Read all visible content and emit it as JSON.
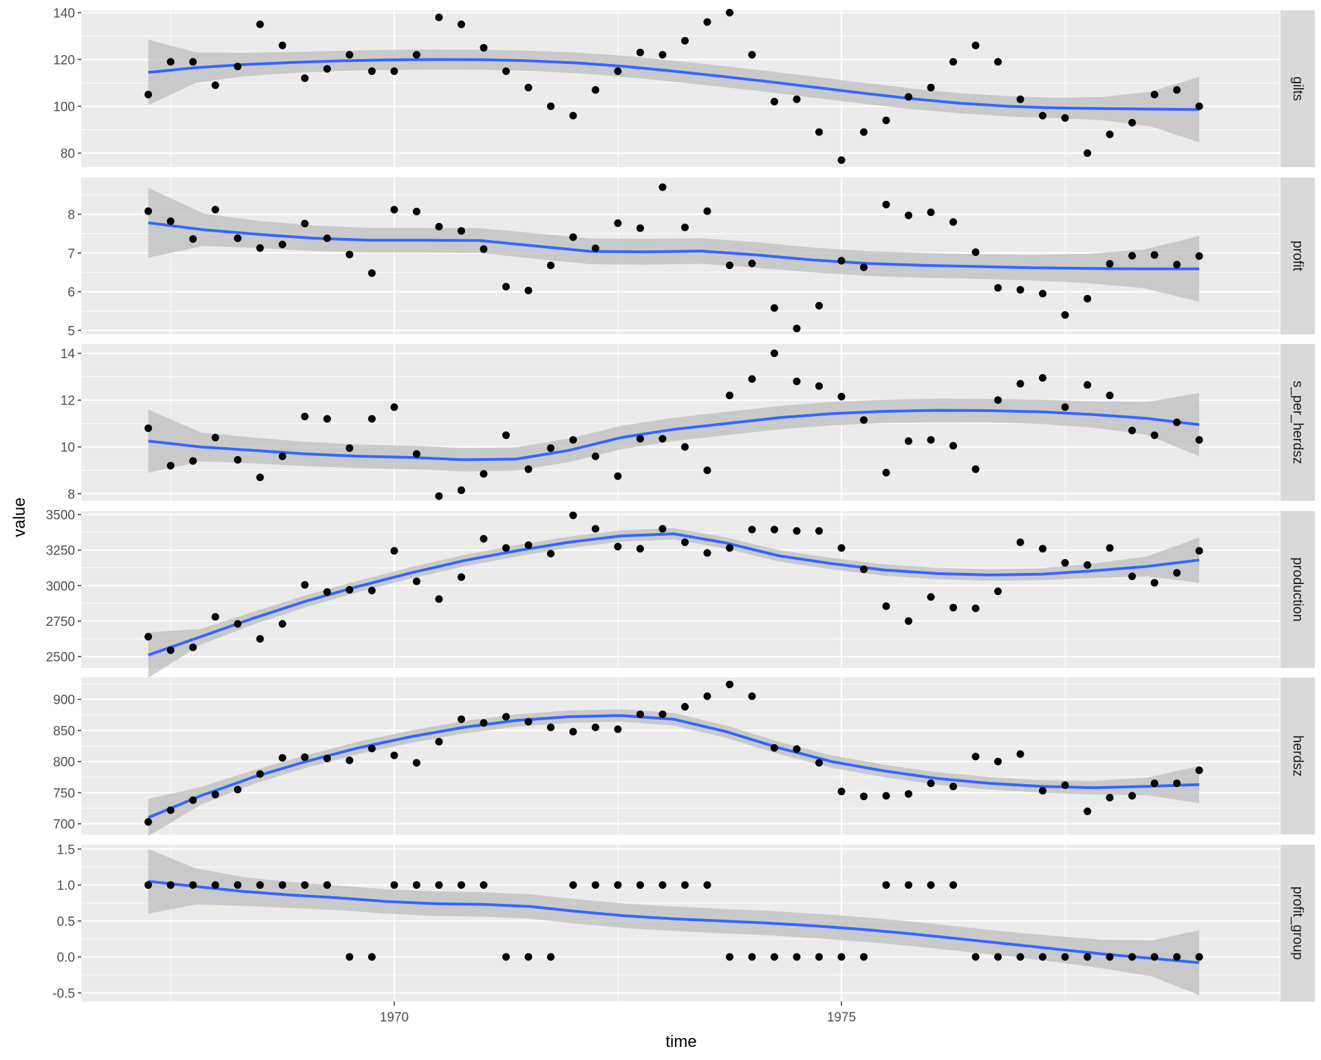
{
  "chart_data": {
    "type": "scatter",
    "xlabel": "time",
    "ylabel": "value",
    "x_ticks": [
      1970,
      1975
    ],
    "x_range": [
      1966.5,
      1979.9
    ],
    "colors": {
      "panel_bg": "#ebebeb",
      "grid": "#ffffff",
      "strip_bg": "#d9d9d9",
      "smooth_line": "#3366ff",
      "ribbon": "#bdbdbd",
      "point": "#000000"
    },
    "x": [
      1967.25,
      1967.5,
      1967.75,
      1968.0,
      1968.25,
      1968.5,
      1968.75,
      1969.0,
      1969.25,
      1969.5,
      1969.75,
      1970.0,
      1970.25,
      1970.5,
      1970.75,
      1971.0,
      1971.25,
      1971.5,
      1971.75,
      1972.0,
      1972.25,
      1972.5,
      1972.75,
      1973.0,
      1973.25,
      1973.5,
      1973.75,
      1974.0,
      1974.25,
      1974.5,
      1974.75,
      1975.0,
      1975.25,
      1975.5,
      1975.75,
      1976.0,
      1976.25,
      1976.5,
      1976.75,
      1977.0,
      1977.25,
      1977.5,
      1977.75,
      1978.0,
      1978.25,
      1978.5,
      1978.75,
      1979.0
    ],
    "panels": [
      {
        "name": "gilts",
        "ylim": [
          74,
          141
        ],
        "y_ticks": [
          80,
          100,
          120,
          140
        ],
        "values": [
          105,
          119,
          119,
          109,
          117,
          135,
          126,
          112,
          116,
          122,
          115,
          115,
          122,
          138,
          135,
          125,
          115,
          108,
          100,
          96,
          107,
          115,
          123,
          122,
          128,
          136,
          140,
          122,
          102,
          103,
          89,
          77,
          89,
          94,
          104,
          108,
          119,
          126,
          119,
          103,
          96,
          95,
          80,
          88,
          93,
          105,
          107,
          100
        ],
        "smooth": [
          114.5,
          116.5,
          117.8,
          118.7,
          119.4,
          119.8,
          120.0,
          119.9,
          119.4,
          118.5,
          117.0,
          115.0,
          112.8,
          110.5,
          108.0,
          105.5,
          103.2,
          101.3,
          100.0,
          99.3,
          99.0,
          98.8,
          98.6
        ],
        "se": [
          14.0,
          6.5,
          5.0,
          4.5,
          4.3,
          4.3,
          4.3,
          4.3,
          4.3,
          4.4,
          4.5,
          4.5,
          4.5,
          4.5,
          4.5,
          4.5,
          4.4,
          4.3,
          4.3,
          4.4,
          5.0,
          7.5,
          14.0
        ]
      },
      {
        "name": "profit",
        "ylim": [
          4.9,
          8.95
        ],
        "y_ticks": [
          5,
          6,
          7,
          8
        ],
        "values": [
          8.08,
          7.82,
          7.36,
          8.12,
          7.38,
          7.13,
          7.22,
          7.76,
          7.38,
          6.96,
          6.48,
          8.12,
          8.07,
          7.68,
          7.57,
          7.1,
          6.13,
          6.03,
          6.68,
          7.41,
          7.12,
          7.77,
          7.64,
          8.7,
          7.66,
          8.08,
          6.68,
          6.73,
          5.58,
          5.05,
          5.64,
          6.8,
          6.63,
          8.25,
          7.97,
          8.05,
          7.8,
          7.02,
          6.1,
          6.05,
          5.95,
          5.4,
          5.82,
          6.72,
          6.93,
          6.95,
          6.7,
          6.92
        ],
        "smooth": [
          7.78,
          7.6,
          7.48,
          7.38,
          7.33,
          7.33,
          7.32,
          7.18,
          7.04,
          7.03,
          7.05,
          6.95,
          6.82,
          6.73,
          6.68,
          6.65,
          6.62,
          6.6,
          6.59,
          6.59
        ],
        "se": [
          0.9,
          0.42,
          0.35,
          0.33,
          0.32,
          0.32,
          0.32,
          0.33,
          0.33,
          0.33,
          0.33,
          0.33,
          0.32,
          0.32,
          0.32,
          0.32,
          0.33,
          0.38,
          0.5,
          0.85
        ]
      },
      {
        "name": "s_per_herdsz",
        "ylim": [
          7.7,
          14.4
        ],
        "y_ticks": [
          8,
          10,
          12,
          14
        ],
        "values": [
          10.8,
          9.2,
          9.4,
          10.4,
          9.45,
          8.7,
          9.6,
          11.3,
          11.2,
          9.95,
          11.2,
          11.7,
          9.7,
          7.9,
          8.15,
          8.85,
          10.5,
          9.05,
          9.95,
          10.3,
          9.6,
          8.75,
          10.35,
          10.35,
          10.0,
          9.0,
          12.2,
          12.9,
          14.0,
          12.8,
          12.6,
          12.15,
          11.15,
          8.9,
          10.25,
          10.3,
          10.05,
          9.05,
          12.0,
          12.7,
          12.95,
          11.7,
          12.65,
          12.2,
          10.7,
          10.5,
          11.05,
          10.3
        ],
        "smooth": [
          10.25,
          10.0,
          9.85,
          9.7,
          9.6,
          9.55,
          9.45,
          9.48,
          9.85,
          10.4,
          10.75,
          11.0,
          11.25,
          11.42,
          11.52,
          11.56,
          11.55,
          11.5,
          11.38,
          11.22,
          10.95
        ],
        "se": [
          1.35,
          0.62,
          0.55,
          0.52,
          0.5,
          0.5,
          0.5,
          0.5,
          0.5,
          0.5,
          0.5,
          0.5,
          0.5,
          0.5,
          0.5,
          0.5,
          0.5,
          0.52,
          0.56,
          0.7,
          1.35
        ]
      },
      {
        "name": "production",
        "ylim": [
          2420,
          3525
        ],
        "y_ticks": [
          2500,
          2750,
          3000,
          3250,
          3500
        ],
        "values": [
          2640,
          2545,
          2565,
          2780,
          2730,
          2625,
          2730,
          3005,
          2955,
          2970,
          2965,
          3245,
          3030,
          2905,
          3060,
          3330,
          3265,
          3285,
          3225,
          3495,
          3400,
          3275,
          3260,
          3400,
          3305,
          3230,
          3265,
          3395,
          3395,
          3385,
          3385,
          3265,
          3115,
          2855,
          2750,
          2920,
          2845,
          2840,
          2960,
          3305,
          3260,
          3160,
          3145,
          3265,
          3065,
          3020,
          3090,
          3245
        ],
        "smooth": [
          2510,
          2640,
          2770,
          2890,
          2995,
          3090,
          3175,
          3245,
          3305,
          3350,
          3365,
          3300,
          3210,
          3155,
          3110,
          3085,
          3075,
          3080,
          3105,
          3135,
          3180
        ],
        "se": [
          160,
          55,
          45,
          42,
          40,
          40,
          40,
          40,
          40,
          40,
          40,
          40,
          40,
          40,
          40,
          40,
          40,
          42,
          50,
          70,
          160
        ]
      },
      {
        "name": "herdsz",
        "ylim": [
          683,
          935
        ],
        "y_ticks": [
          700,
          750,
          800,
          850,
          900
        ],
        "values": [
          703,
          722,
          738,
          747,
          755,
          780,
          806,
          807,
          805,
          802,
          821,
          810,
          798,
          832,
          868,
          862,
          872,
          864,
          855,
          848,
          855,
          852,
          876,
          876,
          888,
          905,
          924,
          905,
          822,
          820,
          798,
          752,
          744,
          745,
          748,
          765,
          760,
          808,
          800,
          812,
          753,
          762,
          720,
          742,
          745,
          765,
          765,
          786
        ],
        "smooth": [
          710,
          745,
          775,
          800,
          822,
          840,
          855,
          866,
          872,
          874,
          868,
          848,
          822,
          800,
          785,
          773,
          765,
          760,
          758,
          760,
          763
        ],
        "se": [
          30,
          14,
          11,
          10,
          10,
          10,
          10,
          10,
          10,
          10,
          10,
          10,
          10,
          10,
          10,
          10,
          10,
          10,
          11,
          14,
          30
        ]
      },
      {
        "name": "profit_group",
        "ylim": [
          -0.62,
          1.56
        ],
        "y_ticks": [
          -0.5,
          0.0,
          0.5,
          1.0,
          1.5
        ],
        "values": [
          1,
          1,
          1,
          1,
          1,
          1,
          1,
          1,
          1,
          0,
          0,
          1,
          1,
          1,
          1,
          1,
          0,
          0,
          0,
          1,
          1,
          1,
          1,
          1,
          1,
          1,
          0,
          0,
          0,
          0,
          0,
          0,
          0,
          1,
          1,
          1,
          1,
          0,
          0,
          0,
          0,
          0,
          0,
          0,
          0,
          0,
          0,
          0
        ],
        "smooth": [
          1.05,
          0.98,
          0.91,
          0.86,
          0.82,
          0.77,
          0.74,
          0.73,
          0.7,
          0.63,
          0.57,
          0.53,
          0.5,
          0.47,
          0.43,
          0.38,
          0.32,
          0.25,
          0.18,
          0.11,
          0.04,
          -0.02,
          -0.08
        ],
        "se": [
          0.45,
          0.25,
          0.2,
          0.18,
          0.17,
          0.17,
          0.17,
          0.17,
          0.17,
          0.17,
          0.17,
          0.17,
          0.17,
          0.17,
          0.17,
          0.17,
          0.17,
          0.17,
          0.17,
          0.18,
          0.2,
          0.25,
          0.45
        ]
      }
    ]
  }
}
